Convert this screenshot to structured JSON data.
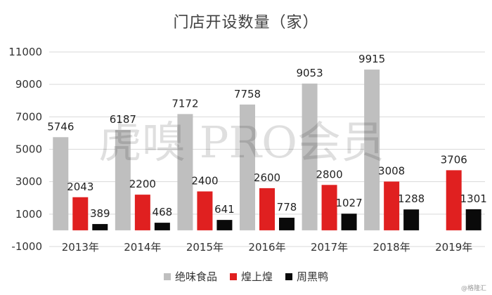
{
  "chart_data": {
    "type": "bar",
    "title": "门店开设数量（家）",
    "categories": [
      "2013年",
      "2014年",
      "2015年",
      "2016年",
      "2017年",
      "2018年",
      "2019年"
    ],
    "series": [
      {
        "name": "绝味食品",
        "color": "#bfbfbf",
        "values": [
          5746,
          6187,
          7172,
          7758,
          9053,
          9915,
          null
        ]
      },
      {
        "name": "煌上煌",
        "color": "#e02020",
        "values": [
          2043,
          2200,
          2400,
          2600,
          2800,
          3008,
          3706
        ]
      },
      {
        "name": "周黑鸭",
        "color": "#0a0a0a",
        "values": [
          389,
          468,
          641,
          778,
          1027,
          1288,
          1301
        ]
      }
    ],
    "ylim": [
      -1000,
      11000
    ],
    "yticks": [
      -1000,
      1000,
      3000,
      5000,
      7000,
      9000,
      11000
    ],
    "gridlines": true,
    "legend_position": "bottom"
  },
  "watermark": {
    "text": "虎嗅 PRO会员"
  },
  "source": "@格隆汇"
}
